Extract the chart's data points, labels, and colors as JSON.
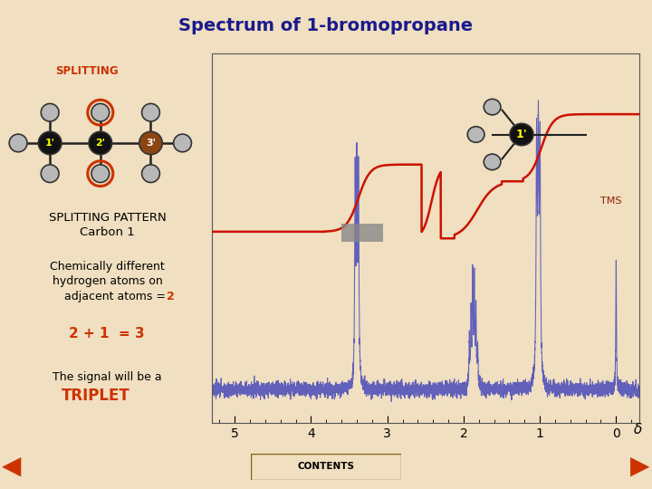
{
  "title": "Spectrum of 1-bromopropane",
  "title_color": "#1a1a8c",
  "title_fontsize": 14,
  "bg_color": "#f0dfc0",
  "plot_bg_color": "#f0dfc0",
  "x_ticks": [
    0,
    1,
    2,
    3,
    4,
    5
  ],
  "splitting_label": "SPLITTING",
  "splitting_color": "#cc3300",
  "orange_color": "#cc3300",
  "blue_color": "#5555bb",
  "tms_color": "#8b2000",
  "gray_bar_color": "#888888",
  "contents_bg": "#c8a840",
  "contents_text": "CONTENTS",
  "H_color": "#b8b8b8",
  "C_color": "#111111",
  "Br_color": "#8b4513",
  "yellow_label": "#ffff00",
  "integ_color": "#cc1100",
  "spec_border": "#333333"
}
